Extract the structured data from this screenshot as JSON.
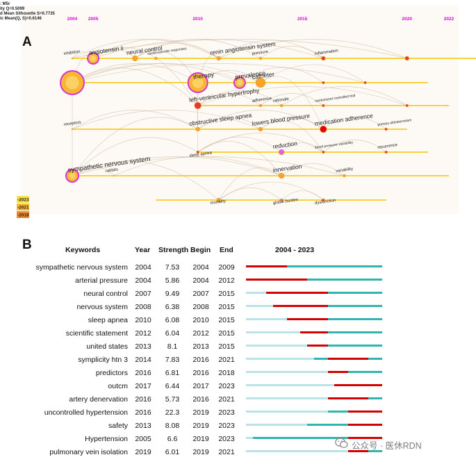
{
  "panel_a_letter": "A",
  "panel_b_letter": "B",
  "chart_data": [
    {
      "type": "scatter",
      "title": "",
      "stats": [
        ": M5r",
        "ity Q=0.5099",
        "d Mean Silhouette S=0.7735",
        "ic Mean(Q, S)=0.6146"
      ],
      "x_ticks": [
        {
          "label": "2004",
          "year": 2004
        },
        {
          "label": "2005",
          "year": 2005
        },
        {
          "label": "2010",
          "year": 2010
        },
        {
          "label": "2015",
          "year": 2015
        },
        {
          "label": "2020",
          "year": 2020
        },
        {
          "label": "2022",
          "year": 2022
        }
      ],
      "tick_color": "#e000e0",
      "line_color": "#f5c400",
      "color_legend": [
        "-2023",
        "-2021",
        "-2018"
      ],
      "clusters": [
        {
          "start": 2004,
          "end": 2023
        },
        {
          "start": 2004,
          "end": 2021
        },
        {
          "start": 2010,
          "end": 2022
        },
        {
          "start": 2004,
          "end": 2020
        },
        {
          "start": 2010,
          "end": 2021
        },
        {
          "start": 2004,
          "end": 2022
        },
        {
          "start": 2008,
          "end": 2019
        }
      ],
      "keywords": [
        {
          "label": "inhibition",
          "cluster": 0,
          "year": 2004,
          "size": 0,
          "color": "#f0a030"
        },
        {
          "label": "angiotensin ii",
          "cluster": 0,
          "year": 2005,
          "size": 7,
          "color": "#d03000"
        },
        {
          "label": "neural control",
          "cluster": 0,
          "year": 2007,
          "size": 3,
          "color": "#f5a623"
        },
        {
          "label": "cardiovascular responses",
          "cluster": 0,
          "year": 2008,
          "size": 1,
          "color": "#f5a623"
        },
        {
          "label": "renin angiotensin system",
          "cluster": 0,
          "year": 2011,
          "size": 2,
          "color": "#f5a623"
        },
        {
          "label": "pressure",
          "cluster": 0,
          "year": 2013,
          "size": 1,
          "color": "#f5a623"
        },
        {
          "label": "inflammation",
          "cluster": 0,
          "year": 2016,
          "size": 2,
          "color": "#e53935"
        },
        {
          "label": "",
          "cluster": 0,
          "year": 2020,
          "size": 2,
          "color": "#e53935"
        },
        {
          "label": "",
          "cluster": 1,
          "year": 2004,
          "size": 16,
          "color": "#f5a623"
        },
        {
          "label": "therapy",
          "cluster": 1,
          "year": 2010,
          "size": 13,
          "color": "#f5a623"
        },
        {
          "label": "prevalence",
          "cluster": 1,
          "year": 2012,
          "size": 7,
          "color": "#f5a623"
        },
        {
          "label": "catheter",
          "cluster": 1,
          "year": 2013,
          "size": 6,
          "color": "#f5a623"
        },
        {
          "label": "",
          "cluster": 1,
          "year": 2016,
          "size": 1,
          "color": "#e53935"
        },
        {
          "label": "",
          "cluster": 1,
          "year": 2018,
          "size": 1,
          "color": "#e53935"
        },
        {
          "label": "left-ventricular hypertrophy",
          "cluster": 2,
          "year": 2010,
          "size": 4,
          "color": "#e53935"
        },
        {
          "label": "adherence",
          "cluster": 2,
          "year": 2013,
          "size": 1,
          "color": "#f5a623"
        },
        {
          "label": "rationale",
          "cluster": 2,
          "year": 2014,
          "size": 1,
          "color": "#f5a623"
        },
        {
          "label": "randomized controlled trial",
          "cluster": 2,
          "year": 2016,
          "size": 1,
          "color": "#e53935"
        },
        {
          "label": "",
          "cluster": 2,
          "year": 2020,
          "size": 1,
          "color": "#e53935"
        },
        {
          "label": "receptors",
          "cluster": 3,
          "year": 2004,
          "size": 0,
          "color": "#f5a623"
        },
        {
          "label": "obstructive sleep apnea",
          "cluster": 3,
          "year": 2010,
          "size": 2,
          "color": "#f5a623"
        },
        {
          "label": "lowers blood pressure",
          "cluster": 3,
          "year": 2013,
          "size": 2,
          "color": "#f5a623"
        },
        {
          "label": "medication adherence",
          "cluster": 3,
          "year": 2016,
          "size": 4,
          "color": "#e00000"
        },
        {
          "label": "primary aldosteronism",
          "cluster": 3,
          "year": 2019,
          "size": 1,
          "color": "#e53935"
        },
        {
          "label": "sleep apnea",
          "cluster": 4,
          "year": 2010,
          "size": 1,
          "color": "#e53935"
        },
        {
          "label": "reduction",
          "cluster": 4,
          "year": 2014,
          "size": 3,
          "color": "#e060e0"
        },
        {
          "label": "blood pressure variability",
          "cluster": 4,
          "year": 2016,
          "size": 1,
          "color": "#e53935"
        },
        {
          "label": "recurrence",
          "cluster": 4,
          "year": 2019,
          "size": 1,
          "color": "#e53935"
        },
        {
          "label": "sympathetic nervous system",
          "cluster": 5,
          "year": 2004,
          "size": 8,
          "color": "#f5a623"
        },
        {
          "label": "rabbits",
          "cluster": 5,
          "year": 2006,
          "size": 0,
          "color": "#f5a623"
        },
        {
          "label": "innervation",
          "cluster": 5,
          "year": 2014,
          "size": 3,
          "color": "#f5a623"
        },
        {
          "label": "variability",
          "cluster": 5,
          "year": 2017,
          "size": 1,
          "color": "#f5a623"
        },
        {
          "label": "mortality",
          "cluster": 6,
          "year": 2011,
          "size": 2,
          "color": "#f5a623"
        },
        {
          "label": "global burden",
          "cluster": 6,
          "year": 2014,
          "size": 1,
          "color": "#e060e0"
        },
        {
          "label": "dysfunction",
          "cluster": 6,
          "year": 2016,
          "size": 1,
          "color": "#e53935"
        }
      ],
      "links": [
        [
          0,
          1
        ],
        [
          1,
          2
        ],
        [
          1,
          4
        ],
        [
          0,
          4
        ],
        [
          2,
          4
        ],
        [
          4,
          6
        ],
        [
          1,
          6
        ],
        [
          2,
          5
        ],
        [
          5,
          6
        ],
        [
          0,
          7
        ],
        [
          4,
          7
        ],
        [
          8,
          9
        ],
        [
          9,
          10
        ],
        [
          9,
          11
        ],
        [
          8,
          11
        ],
        [
          8,
          10
        ],
        [
          10,
          12
        ],
        [
          11,
          13
        ],
        [
          8,
          13
        ],
        [
          14,
          15
        ],
        [
          14,
          16
        ],
        [
          15,
          17
        ],
        [
          14,
          18
        ],
        [
          16,
          18
        ],
        [
          19,
          20
        ],
        [
          20,
          21
        ],
        [
          21,
          22
        ],
        [
          20,
          22
        ],
        [
          22,
          23
        ],
        [
          19,
          21
        ],
        [
          24,
          25
        ],
        [
          25,
          26
        ],
        [
          24,
          26
        ],
        [
          26,
          27
        ],
        [
          28,
          29
        ],
        [
          28,
          30
        ],
        [
          29,
          30
        ],
        [
          30,
          31
        ],
        [
          28,
          31
        ],
        [
          32,
          33
        ],
        [
          33,
          34
        ],
        [
          32,
          34
        ],
        [
          8,
          14
        ],
        [
          9,
          14
        ],
        [
          14,
          20
        ],
        [
          20,
          24
        ],
        [
          24,
          28
        ],
        [
          28,
          32
        ],
        [
          9,
          20
        ],
        [
          1,
          8
        ],
        [
          4,
          9
        ],
        [
          2,
          9
        ],
        [
          30,
          32
        ],
        [
          24,
          30
        ],
        [
          21,
          26
        ],
        [
          8,
          28
        ],
        [
          28,
          20
        ],
        [
          11,
          22
        ],
        [
          1,
          14
        ]
      ]
    },
    {
      "type": "table",
      "title": "",
      "headers": [
        "Keywords",
        "Year",
        "Strength",
        "Begin",
        "End",
        "2004 - 2023"
      ],
      "range_start": 2004,
      "range_end": 2023,
      "color_burst": "#d40000",
      "color_active": "#2eb5b0",
      "color_inactive": "#b9e3e6",
      "rows": [
        {
          "keyword": "sympathetic nervous system",
          "year": "2004",
          "strength": "7.53",
          "begin": "2004",
          "end": "2009"
        },
        {
          "keyword": "arterial pressure",
          "year": "2004",
          "strength": "5.86",
          "begin": "2004",
          "end": "2012"
        },
        {
          "keyword": "neural control",
          "year": "2007",
          "strength": "9.49",
          "begin": "2007",
          "end": "2015"
        },
        {
          "keyword": "nervous system",
          "year": "2008",
          "strength": "6.38",
          "begin": "2008",
          "end": "2015"
        },
        {
          "keyword": "sleep apnea",
          "year": "2010",
          "strength": "6.08",
          "begin": "2010",
          "end": "2015"
        },
        {
          "keyword": "scientific statement",
          "year": "2012",
          "strength": "6.04",
          "begin": "2012",
          "end": "2015"
        },
        {
          "keyword": "united states",
          "year": "2013",
          "strength": "8.1",
          "begin": "2013",
          "end": "2015"
        },
        {
          "keyword": "symplicity htn 3",
          "year": "2014",
          "strength": "7.83",
          "begin": "2016",
          "end": "2021"
        },
        {
          "keyword": "predictors",
          "year": "2016",
          "strength": "6.81",
          "begin": "2016",
          "end": "2018"
        },
        {
          "keyword": "outcm",
          "year": "2017",
          "strength": "6.44",
          "begin": "2017",
          "end": "2023"
        },
        {
          "keyword": "artery denervation",
          "year": "2016",
          "strength": "5.73",
          "begin": "2016",
          "end": "2021"
        },
        {
          "keyword": "uncontrolled hypertension",
          "year": "2016",
          "strength": "22.3",
          "begin": "2019",
          "end": "2023"
        },
        {
          "keyword": "safety",
          "year": "2013",
          "strength": "8.08",
          "begin": "2019",
          "end": "2023"
        },
        {
          "keyword": "Hypertension",
          "year": "2005",
          "strength": "6.6",
          "begin": "2019",
          "end": "2023"
        },
        {
          "keyword": "pulmonary vein isolation",
          "year": "2019",
          "strength": "6.01",
          "begin": "2019",
          "end": "2021"
        }
      ]
    }
  ],
  "watermark": {
    "text": "公众号 · 医休RDN",
    "icon": "wechat-icon"
  }
}
